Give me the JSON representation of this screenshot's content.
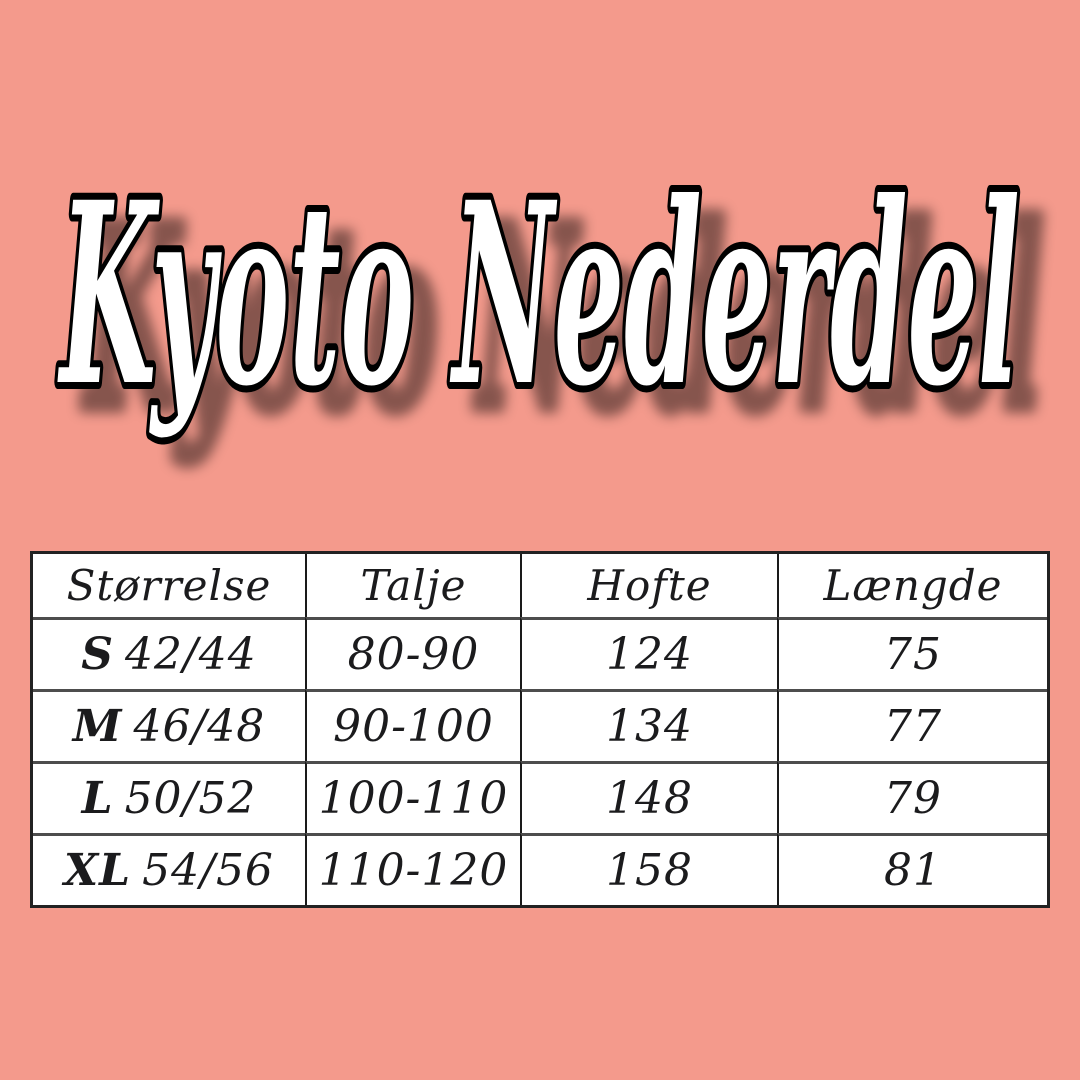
{
  "page": {
    "background_color": "#f49a8c"
  },
  "title": {
    "text": "Kyoto Nederdel",
    "fill_color": "#ffffff",
    "outline_color": "#000000",
    "shadow_color": "rgba(0,0,0,0.45)"
  },
  "size_chart": {
    "columns": [
      "Størrelse",
      "Talje",
      "Hofte",
      "Længde"
    ],
    "rows": [
      {
        "size": "S",
        "range": "42/44",
        "talje": "80-90",
        "hofte": "124",
        "laengde": "75"
      },
      {
        "size": "M",
        "range": "46/48",
        "talje": "90-100",
        "hofte": "134",
        "laengde": "77"
      },
      {
        "size": "L",
        "range": "50/52",
        "talje": "100-110",
        "hofte": "148",
        "laengde": "79"
      },
      {
        "size": "XL",
        "range": "54/56",
        "talje": "110-120",
        "hofte": "158",
        "laengde": "81"
      }
    ]
  },
  "chart_data": {
    "type": "table",
    "title": "Kyoto Nederdel",
    "columns": [
      "Størrelse",
      "Talje",
      "Hofte",
      "Længde"
    ],
    "rows": [
      [
        "S 42/44",
        "80-90",
        "124",
        "75"
      ],
      [
        "M 46/48",
        "90-100",
        "134",
        "77"
      ],
      [
        "L 50/52",
        "100-110",
        "148",
        "79"
      ],
      [
        "XL 54/56",
        "110-120",
        "158",
        "81"
      ]
    ]
  }
}
